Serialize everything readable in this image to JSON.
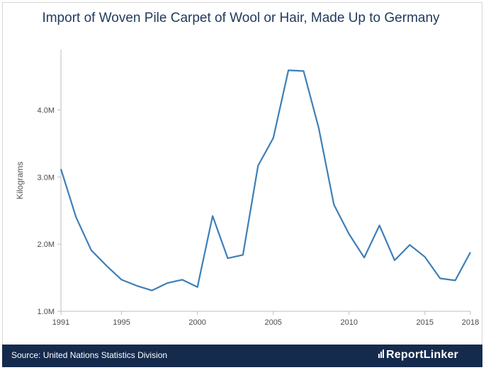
{
  "header": {
    "title": "Import of Woven Pile Carpet of Wool or Hair, Made Up to Germany"
  },
  "footer": {
    "source": "Source: United Nations Statistics Division",
    "brand": "ReportLinker"
  },
  "colors": {
    "line": "#3d7fb8",
    "footer_bg": "#152b4d",
    "title": "#1f3a5c"
  },
  "chart_data": {
    "type": "line",
    "title": "Import of Woven Pile Carpet of Wool or Hair, Made Up to Germany",
    "xlabel": "",
    "ylabel": "Kilograms",
    "x": [
      1991,
      1992,
      1993,
      1994,
      1995,
      1996,
      1997,
      1998,
      1999,
      2000,
      2001,
      2002,
      2003,
      2004,
      2005,
      2006,
      2007,
      2008,
      2009,
      2010,
      2011,
      2012,
      2013,
      2014,
      2015,
      2016,
      2017,
      2018
    ],
    "values": [
      3120000,
      2400000,
      1910000,
      1680000,
      1470000,
      1380000,
      1310000,
      1420000,
      1470000,
      1360000,
      2420000,
      1790000,
      1840000,
      3170000,
      3580000,
      4590000,
      4580000,
      3730000,
      2590000,
      2150000,
      1800000,
      2280000,
      1760000,
      1990000,
      1810000,
      1490000,
      1460000,
      1880000
    ],
    "xlim": [
      1991,
      2018
    ],
    "ylim": [
      1000000,
      4900000
    ],
    "x_ticks": [
      1991,
      1995,
      2000,
      2005,
      2010,
      2015,
      2018
    ],
    "x_tick_labels": [
      "1991",
      "1995",
      "2000",
      "2005",
      "2010",
      "2015",
      "2018"
    ],
    "y_ticks": [
      1000000,
      2000000,
      3000000,
      4000000
    ],
    "y_tick_labels": [
      "1.0M",
      "2.0M",
      "3.0M",
      "4.0M"
    ],
    "grid": false,
    "legend": "none"
  }
}
